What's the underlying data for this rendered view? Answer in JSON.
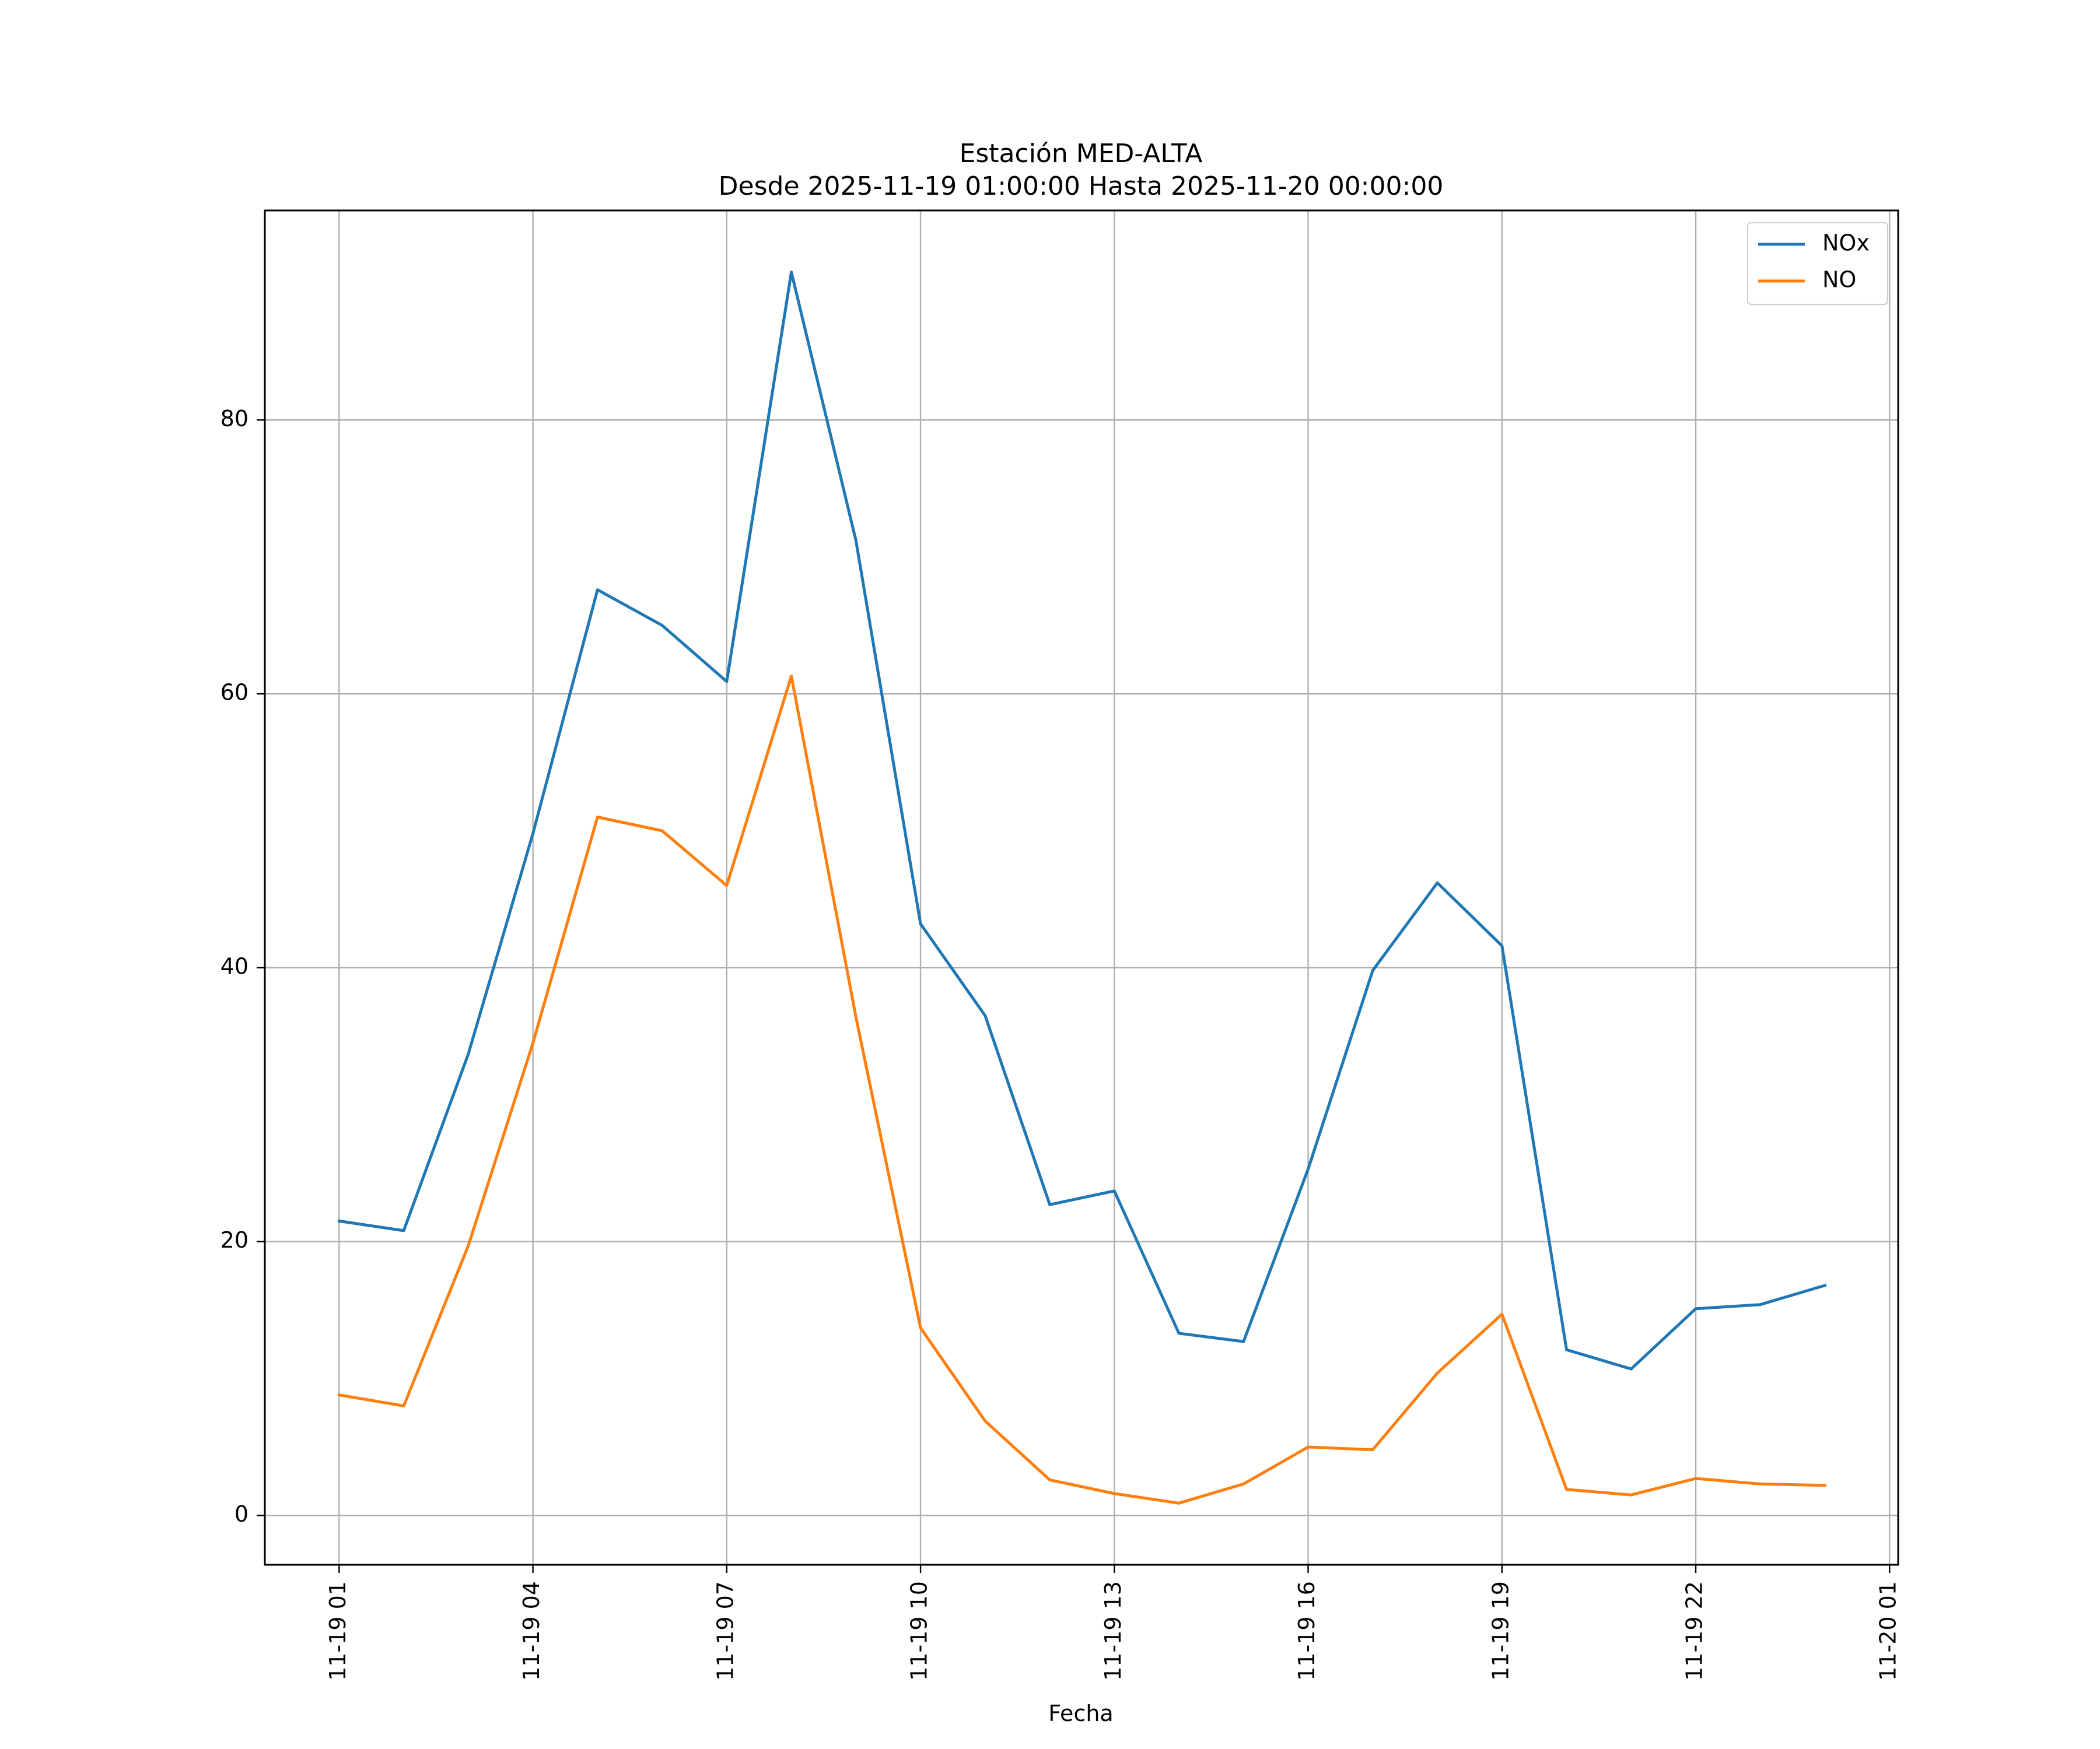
{
  "chart_data": {
    "type": "line",
    "title": "Estación MED-ALTA",
    "subtitle": "Desde 2025-11-19 01:00:00 Hasta 2025-11-20 00:00:00",
    "xlabel": "Fecha",
    "ylabel": "",
    "x": [
      "2025-11-19 01:00",
      "2025-11-19 02:00",
      "2025-11-19 03:00",
      "2025-11-19 04:00",
      "2025-11-19 05:00",
      "2025-11-19 06:00",
      "2025-11-19 07:00",
      "2025-11-19 08:00",
      "2025-11-19 09:00",
      "2025-11-19 10:00",
      "2025-11-19 11:00",
      "2025-11-19 12:00",
      "2025-11-19 13:00",
      "2025-11-19 14:00",
      "2025-11-19 15:00",
      "2025-11-19 16:00",
      "2025-11-19 17:00",
      "2025-11-19 18:00",
      "2025-11-19 19:00",
      "2025-11-19 20:00",
      "2025-11-19 21:00",
      "2025-11-19 22:00",
      "2025-11-19 23:00",
      "2025-11-20 00:00"
    ],
    "xlim": [
      "2025-11-18 23:51",
      "2025-11-20 01:08"
    ],
    "xticks": [
      "2025-11-19 01:00",
      "2025-11-19 04:00",
      "2025-11-19 07:00",
      "2025-11-19 10:00",
      "2025-11-19 13:00",
      "2025-11-19 16:00",
      "2025-11-19 19:00",
      "2025-11-19 22:00",
      "2025-11-20 01:00"
    ],
    "xtick_labels": [
      "11-19 01",
      "11-19 04",
      "11-19 07",
      "11-19 10",
      "11-19 13",
      "11-19 16",
      "11-19 19",
      "11-19 22",
      "11-20 01"
    ],
    "ylim": [
      -3.6,
      95.3
    ],
    "yticks": [
      0,
      20,
      40,
      60,
      80
    ],
    "ytick_labels": [
      "0",
      "20",
      "40",
      "60",
      "80"
    ],
    "grid": true,
    "legend_position": "top-right",
    "series": [
      {
        "name": "NOx",
        "color": "#1f77b4",
        "values": [
          21.5,
          20.8,
          33.7,
          49.8,
          67.6,
          65.0,
          60.9,
          90.8,
          71.2,
          43.2,
          36.5,
          22.7,
          23.7,
          13.3,
          12.7,
          25.3,
          39.8,
          46.2,
          41.6,
          12.1,
          10.7,
          15.1,
          15.4,
          16.8
        ]
      },
      {
        "name": "NO",
        "color": "#ff7f0e",
        "values": [
          8.8,
          8.0,
          19.7,
          34.5,
          51.0,
          50.0,
          46.0,
          61.3,
          36.4,
          13.7,
          6.9,
          2.6,
          1.6,
          0.9,
          2.3,
          5.0,
          4.8,
          10.4,
          14.7,
          1.9,
          1.5,
          2.7,
          2.3,
          2.2
        ]
      }
    ]
  }
}
